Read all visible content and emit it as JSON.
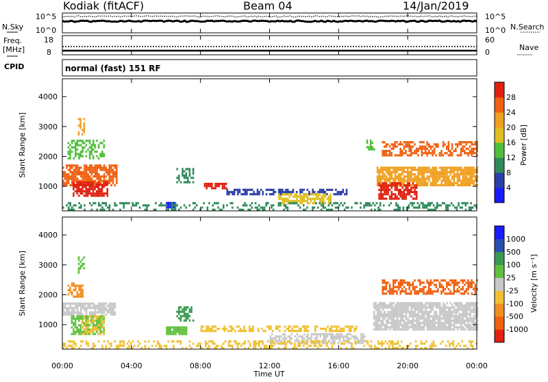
{
  "header": {
    "station": "Kodiak (fitACF)",
    "beam": "Beam 04",
    "date": "14/Jan/2019"
  },
  "status_panels": {
    "nsky": {
      "label": "N.Sky",
      "ticks": [
        "10^5",
        "10^0"
      ]
    },
    "nsearch": {
      "label": "N.Search",
      "ticks": [
        "10^5",
        "10^0"
      ]
    },
    "freq": {
      "label_line1": "Freq.",
      "label_line2": "[MHz]",
      "ticks": [
        "18",
        "8"
      ]
    },
    "nave": {
      "label": "Nave",
      "ticks": [
        "60",
        "0"
      ]
    },
    "cpid": {
      "label": "CPID",
      "value": "normal (fast) 151 RF"
    }
  },
  "chart_data": [
    {
      "type": "heatmap",
      "name": "power",
      "ylabel": "Slant Range [km]",
      "xlabel": "Time UT",
      "x_ticks": [
        "00:00",
        "04:00",
        "08:00",
        "12:00",
        "16:00",
        "20:00",
        "00:00"
      ],
      "y_ticks": [
        "4000",
        "3000",
        "2000",
        "1000"
      ],
      "y_range_km": [
        180,
        4600
      ],
      "x_range_h": [
        0,
        24
      ],
      "colorbar": {
        "label": "Power [dB]",
        "ticks": [
          "28",
          "24",
          "20",
          "16",
          "12",
          "8",
          "4"
        ],
        "colors": [
          "#1a1aff",
          "#2b3fa8",
          "#2f8a5a",
          "#4fbf3a",
          "#e0c020",
          "#f0a020",
          "#f06010",
          "#e02010"
        ]
      },
      "regions": [
        {
          "t0": 0.0,
          "t1": 3.1,
          "r0": 1000,
          "r1": 1700,
          "color": "#f06010",
          "density": 0.75
        },
        {
          "t0": 0.6,
          "t1": 2.6,
          "r0": 650,
          "r1": 1100,
          "color": "#e02010",
          "density": 0.8
        },
        {
          "t0": 0.3,
          "t1": 2.4,
          "r0": 1900,
          "r1": 2500,
          "color": "#4fbf3a",
          "density": 0.5
        },
        {
          "t0": 0.9,
          "t1": 1.3,
          "r0": 2700,
          "r1": 3300,
          "color": "#f0a020",
          "density": 0.5
        },
        {
          "t0": 6.6,
          "t1": 7.6,
          "r0": 1100,
          "r1": 1600,
          "color": "#2f8a5a",
          "density": 0.5
        },
        {
          "t0": 8.2,
          "t1": 9.5,
          "r0": 900,
          "r1": 1100,
          "color": "#e02010",
          "density": 0.7
        },
        {
          "t0": 9.5,
          "t1": 16.5,
          "r0": 700,
          "r1": 850,
          "color": "#2b3fa8",
          "density": 0.6
        },
        {
          "t0": 12.5,
          "t1": 15.5,
          "r0": 400,
          "r1": 700,
          "color": "#e0c020",
          "density": 0.7
        },
        {
          "t0": 17.6,
          "t1": 18.1,
          "r0": 2200,
          "r1": 2500,
          "color": "#4fbf3a",
          "density": 0.6
        },
        {
          "t0": 18.5,
          "t1": 24.0,
          "r0": 2000,
          "r1": 2450,
          "color": "#f06010",
          "density": 0.55
        },
        {
          "t0": 18.2,
          "t1": 24.0,
          "r0": 1000,
          "r1": 1650,
          "color": "#f0a020",
          "density": 0.85
        },
        {
          "t0": 18.3,
          "t1": 20.5,
          "r0": 550,
          "r1": 1100,
          "color": "#e02010",
          "density": 0.75
        },
        {
          "t0": 6.0,
          "t1": 6.5,
          "r0": 260,
          "r1": 420,
          "color": "#1a1aff",
          "density": 1.0
        },
        {
          "t0": 0.0,
          "t1": 24.0,
          "r0": 180,
          "r1": 420,
          "color": "#2f8a5a",
          "density": 0.35
        }
      ]
    },
    {
      "type": "heatmap",
      "name": "velocity",
      "ylabel": "Slant Range [km]",
      "xlabel": "Time UT",
      "x_ticks": [
        "00:00",
        "04:00",
        "08:00",
        "12:00",
        "16:00",
        "20:00",
        "00:00"
      ],
      "y_ticks": [
        "4000",
        "3000",
        "2000",
        "1000"
      ],
      "y_range_km": [
        180,
        4600
      ],
      "x_range_h": [
        0,
        24
      ],
      "colorbar": {
        "label": "Velocity [m s⁻¹]",
        "ticks": [
          "1000",
          "500",
          "100",
          "25",
          "-25",
          "-100",
          "-500",
          "-1000"
        ],
        "colors": [
          "#e02010",
          "#f06010",
          "#f09020",
          "#f0c030",
          "#c8c8c8",
          "#60c040",
          "#3a9a50",
          "#2b4fb0",
          "#1a1aff"
        ]
      },
      "regions": [
        {
          "t0": 0.0,
          "t1": 3.0,
          "r0": 1300,
          "r1": 1700,
          "color": "#c8c8c8",
          "density": 0.8
        },
        {
          "t0": 0.5,
          "t1": 2.4,
          "r0": 650,
          "r1": 1300,
          "color": "#60c040",
          "density": 0.75
        },
        {
          "t0": 1.1,
          "t1": 2.4,
          "r0": 650,
          "r1": 1300,
          "color": "#f0c030",
          "density": 0.5
        },
        {
          "t0": 0.3,
          "t1": 1.2,
          "r0": 1900,
          "r1": 2400,
          "color": "#f09020",
          "density": 0.6
        },
        {
          "t0": 0.9,
          "t1": 1.3,
          "r0": 2700,
          "r1": 3300,
          "color": "#60c040",
          "density": 0.4
        },
        {
          "t0": 6.0,
          "t1": 7.2,
          "r0": 650,
          "r1": 900,
          "color": "#60c040",
          "density": 0.9
        },
        {
          "t0": 6.6,
          "t1": 7.6,
          "r0": 1100,
          "r1": 1600,
          "color": "#3a9a50",
          "density": 0.5
        },
        {
          "t0": 8.0,
          "t1": 17.0,
          "r0": 750,
          "r1": 900,
          "color": "#f0c030",
          "density": 0.55
        },
        {
          "t0": 12.0,
          "t1": 17.5,
          "r0": 350,
          "r1": 700,
          "color": "#c8c8c8",
          "density": 0.6
        },
        {
          "t0": 18.5,
          "t1": 24.0,
          "r0": 2000,
          "r1": 2450,
          "color": "#f06010",
          "density": 0.6
        },
        {
          "t0": 18.0,
          "t1": 24.0,
          "r0": 800,
          "r1": 1750,
          "color": "#c8c8c8",
          "density": 0.85
        },
        {
          "t0": 0.0,
          "t1": 24.0,
          "r0": 180,
          "r1": 400,
          "color": "#f0c030",
          "density": 0.35
        }
      ]
    }
  ]
}
